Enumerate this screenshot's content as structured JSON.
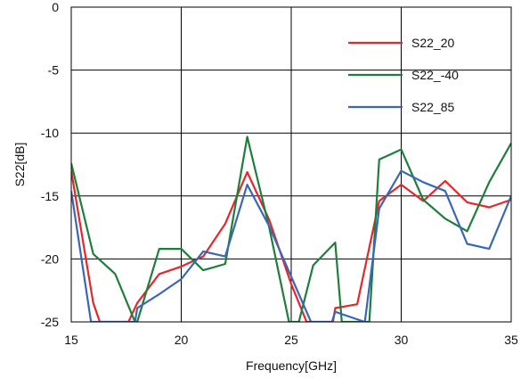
{
  "chart_data": {
    "type": "line",
    "xlabel": "Frequency[GHz]",
    "ylabel": "S22[dB]",
    "xlim": [
      15,
      35
    ],
    "ylim": [
      -25,
      0
    ],
    "xticks": [
      15,
      20,
      25,
      30,
      35
    ],
    "xtick_labels": [
      "15",
      "20",
      "25",
      "30",
      "35"
    ],
    "yticks": [
      0,
      -5,
      -10,
      -15,
      -20,
      -25
    ],
    "ytick_labels": [
      "0",
      "-5",
      "-10",
      "-15",
      "-20",
      "-25"
    ],
    "grid": true,
    "legend_position": "top-right",
    "series": [
      {
        "name": "S22_20",
        "color": "#e8262a",
        "x": [
          15,
          16,
          16.3,
          17.6,
          18,
          19,
          20,
          21,
          22,
          23,
          24,
          25,
          25.7,
          26.05,
          26.9,
          27,
          28,
          29,
          30,
          31,
          32,
          33,
          34,
          35
        ],
        "y": [
          -13,
          -23.5,
          -25,
          -25,
          -23.5,
          -21.2,
          -20.6,
          -19.8,
          -17.2,
          -13.1,
          -16.9,
          -22,
          -25,
          -25,
          -25,
          -23.9,
          -23.6,
          -15.4,
          -14.1,
          -15.4,
          -13.8,
          -15.5,
          -15.9,
          -15.3
        ]
      },
      {
        "name": "S22_-40",
        "color": "#1d7f3a",
        "x": [
          15,
          16,
          17,
          17.9,
          18,
          19,
          20,
          21,
          22,
          23,
          24,
          24.9,
          25.35,
          26,
          27,
          27.3,
          28.55,
          29,
          30,
          31,
          32,
          33,
          34,
          35
        ],
        "y": [
          -12.4,
          -19.6,
          -21.2,
          -25,
          -25,
          -19.2,
          -19.2,
          -20.9,
          -20.4,
          -10.3,
          -17.5,
          -25,
          -25,
          -20.5,
          -18.7,
          -25,
          -25,
          -12.1,
          -11.3,
          -15.3,
          -16.8,
          -17.8,
          -13.9,
          -10.8
        ]
      },
      {
        "name": "S22_85",
        "color": "#3a66b8",
        "x": [
          15,
          15.9,
          17.9,
          18,
          19,
          20,
          21,
          22,
          23,
          24,
          25,
          25.9,
          26.85,
          27,
          28.35,
          29,
          30,
          31,
          32,
          33,
          34,
          35
        ],
        "y": [
          -14.6,
          -25,
          -25,
          -23.9,
          -22.8,
          -21.6,
          -19.4,
          -19.8,
          -14.1,
          -17.4,
          -21.4,
          -25,
          -25,
          -24.2,
          -25,
          -16,
          -13,
          -13.9,
          -14.6,
          -18.8,
          -19.2,
          -15
        ]
      }
    ]
  }
}
